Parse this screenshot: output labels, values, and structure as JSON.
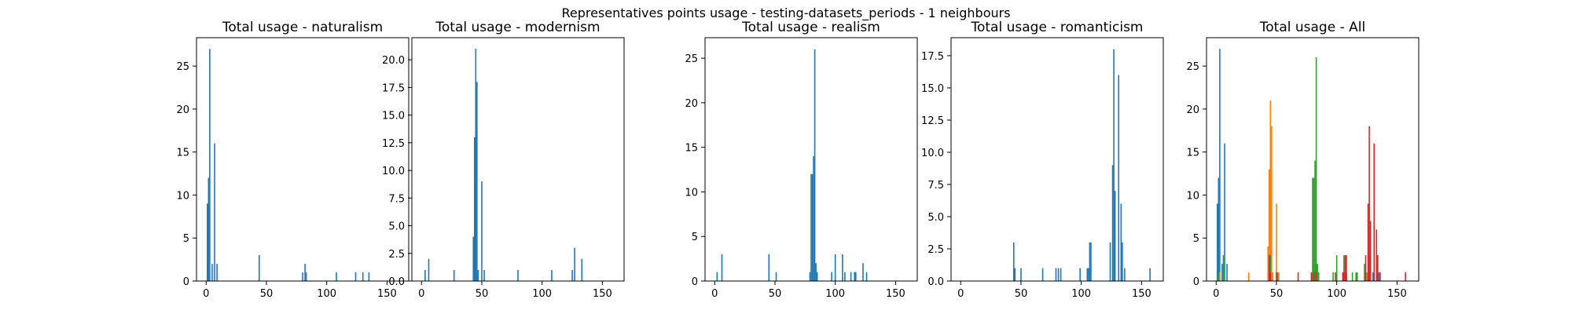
{
  "figure": {
    "suptitle": "Representatives points usage - testing-datasets_periods - 1 neighbours"
  },
  "colors": {
    "naturalism": "#1f77b4",
    "modernism": "#ff7f0e",
    "realism": "#2ca02c",
    "romanticism": "#d62728",
    "axis": "#000000",
    "background": "#ffffff"
  },
  "chart_data": [
    {
      "type": "bar",
      "title": "Total usage - naturalism",
      "xlabel": "",
      "ylabel": "",
      "xlim": [
        -8,
        168
      ],
      "ylim": [
        0,
        28.3
      ],
      "xticks": [
        "0",
        "50",
        "100",
        "150"
      ],
      "yticks": [
        "0",
        "5",
        "10",
        "15",
        "20",
        "25"
      ],
      "grid": false,
      "series": [
        {
          "x": [
            1,
            2,
            3,
            5,
            7,
            9,
            44,
            80,
            82,
            83,
            108,
            124,
            130,
            135
          ],
          "values": [
            9,
            12,
            27,
            2,
            16,
            2,
            3,
            1,
            2,
            1,
            1,
            1,
            1,
            1
          ]
        }
      ]
    },
    {
      "type": "bar",
      "title": "Total usage - modernism",
      "xlabel": "",
      "ylabel": "",
      "xlim": [
        -8,
        168
      ],
      "ylim": [
        0,
        22
      ],
      "xticks": [
        "0",
        "50",
        "100",
        "150"
      ],
      "yticks": [
        "0.0",
        "2.5",
        "5.0",
        "7.5",
        "10.0",
        "12.5",
        "15.0",
        "17.5",
        "20.0"
      ],
      "grid": false,
      "series": [
        {
          "x": [
            3,
            6,
            27,
            43,
            44,
            45,
            46,
            47,
            50,
            52,
            80,
            108,
            125,
            127,
            133
          ],
          "values": [
            1,
            2,
            1,
            4,
            13,
            21,
            18,
            1,
            9,
            1,
            1,
            1,
            1,
            3,
            2
          ]
        }
      ]
    },
    {
      "type": "bar",
      "title": "Total usage - realism",
      "xlabel": "",
      "ylabel": "",
      "xlim": [
        -8,
        168
      ],
      "ylim": [
        0,
        27.3
      ],
      "xticks": [
        "0",
        "50",
        "100",
        "150"
      ],
      "yticks": [
        "0",
        "5",
        "10",
        "15",
        "20",
        "25"
      ],
      "grid": false,
      "series": [
        {
          "x": [
            2,
            6,
            45,
            51,
            79,
            80,
            81,
            82,
            83,
            84,
            85,
            97,
            100,
            106,
            108,
            113,
            116,
            117,
            123,
            126
          ],
          "values": [
            1,
            3,
            3,
            1,
            1,
            12,
            12,
            14,
            26,
            2,
            1,
            1,
            3,
            3,
            1,
            1,
            1,
            1,
            2,
            1
          ]
        }
      ]
    },
    {
      "type": "bar",
      "title": "Total usage - romanticism",
      "xlabel": "",
      "ylabel": "",
      "xlim": [
        -8,
        168
      ],
      "ylim": [
        0,
        18.9
      ],
      "xticks": [
        "0",
        "50",
        "100",
        "150"
      ],
      "yticks": [
        "0.0",
        "2.5",
        "5.0",
        "7.5",
        "10.0",
        "12.5",
        "15.0",
        "17.5"
      ],
      "grid": false,
      "series": [
        {
          "x": [
            44,
            45,
            50,
            68,
            79,
            81,
            83,
            99,
            105,
            106,
            107,
            108,
            124,
            126,
            127,
            128,
            131,
            133,
            134,
            136,
            157
          ],
          "values": [
            3,
            1,
            1,
            1,
            1,
            1,
            1,
            1,
            1,
            1,
            3,
            3,
            3,
            9,
            18,
            7,
            16,
            6,
            3,
            1,
            1
          ]
        }
      ]
    },
    {
      "type": "bar",
      "title": "Total usage - All",
      "xlabel": "",
      "ylabel": "",
      "xlim": [
        -8,
        168
      ],
      "ylim": [
        0,
        28.3
      ],
      "xticks": [
        "0",
        "50",
        "100",
        "150"
      ],
      "yticks": [
        "0",
        "5",
        "10",
        "15",
        "20",
        "25"
      ],
      "grid": false,
      "series": [
        {
          "name": "naturalism",
          "x": [
            1,
            2,
            3,
            5,
            7,
            9,
            44,
            80,
            82,
            83,
            108,
            124,
            130,
            135
          ],
          "values": [
            9,
            12,
            27,
            2,
            16,
            2,
            3,
            1,
            2,
            1,
            1,
            1,
            1,
            1
          ]
        },
        {
          "name": "modernism",
          "x": [
            3,
            6,
            27,
            43,
            44,
            45,
            46,
            47,
            50,
            52,
            80,
            108,
            125,
            127,
            133
          ],
          "values": [
            1,
            2,
            1,
            4,
            13,
            21,
            18,
            1,
            9,
            1,
            1,
            1,
            1,
            3,
            2
          ]
        },
        {
          "name": "realism",
          "x": [
            2,
            6,
            45,
            51,
            79,
            80,
            81,
            82,
            83,
            84,
            85,
            97,
            100,
            106,
            108,
            113,
            116,
            117,
            123,
            126
          ],
          "values": [
            1,
            3,
            3,
            1,
            1,
            12,
            12,
            14,
            26,
            2,
            1,
            1,
            3,
            3,
            1,
            1,
            1,
            1,
            2,
            1
          ]
        },
        {
          "name": "romanticism",
          "x": [
            44,
            45,
            50,
            68,
            79,
            81,
            83,
            99,
            105,
            106,
            107,
            108,
            124,
            126,
            127,
            128,
            131,
            133,
            134,
            136,
            157
          ],
          "values": [
            3,
            1,
            1,
            1,
            1,
            1,
            1,
            1,
            1,
            1,
            3,
            3,
            3,
            9,
            18,
            7,
            16,
            6,
            3,
            1,
            1
          ]
        }
      ]
    }
  ]
}
